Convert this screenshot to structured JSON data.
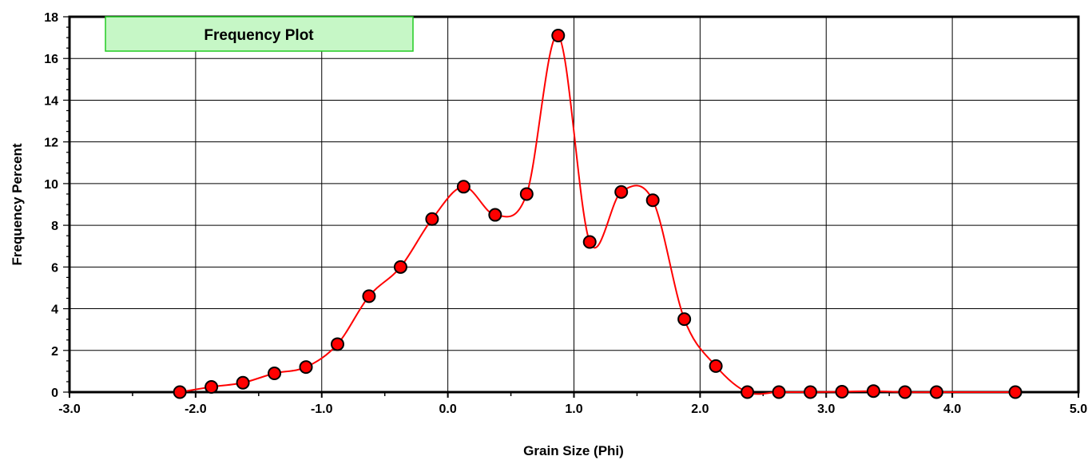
{
  "chart_data": {
    "type": "line",
    "title": "Frequency Plot",
    "xlabel": "Grain Size (Phi)",
    "ylabel": "Frequency Percent",
    "xlim": [
      -3.0,
      5.0
    ],
    "ylim": [
      0,
      18
    ],
    "x_ticks": [
      "-3.0",
      "-2.0",
      "-1.0",
      "0.0",
      "1.0",
      "2.0",
      "3.0",
      "4.0",
      "5.0"
    ],
    "y_ticks": [
      "0",
      "2",
      "4",
      "6",
      "8",
      "10",
      "12",
      "14",
      "16",
      "18"
    ],
    "grid": true,
    "legend_position": "top-left",
    "series": [
      {
        "name": "Frequency Plot",
        "line_color": "#ff0000",
        "marker_color": "#ff0000",
        "marker_edge": "#000000",
        "x": [
          -2.125,
          -1.875,
          -1.625,
          -1.375,
          -1.125,
          -0.875,
          -0.625,
          -0.375,
          -0.125,
          0.125,
          0.375,
          0.625,
          0.875,
          1.125,
          1.375,
          1.625,
          1.875,
          2.125,
          2.375,
          2.625,
          2.875,
          3.125,
          3.375,
          3.625,
          3.875,
          4.5
        ],
        "y": [
          0.0,
          0.25,
          0.45,
          0.9,
          1.2,
          2.3,
          4.6,
          6.0,
          8.3,
          9.85,
          8.5,
          9.5,
          17.1,
          7.2,
          9.6,
          9.2,
          3.5,
          1.25,
          0.0,
          0.0,
          0.0,
          0.02,
          0.05,
          0.0,
          0.0,
          0.0
        ]
      }
    ]
  }
}
